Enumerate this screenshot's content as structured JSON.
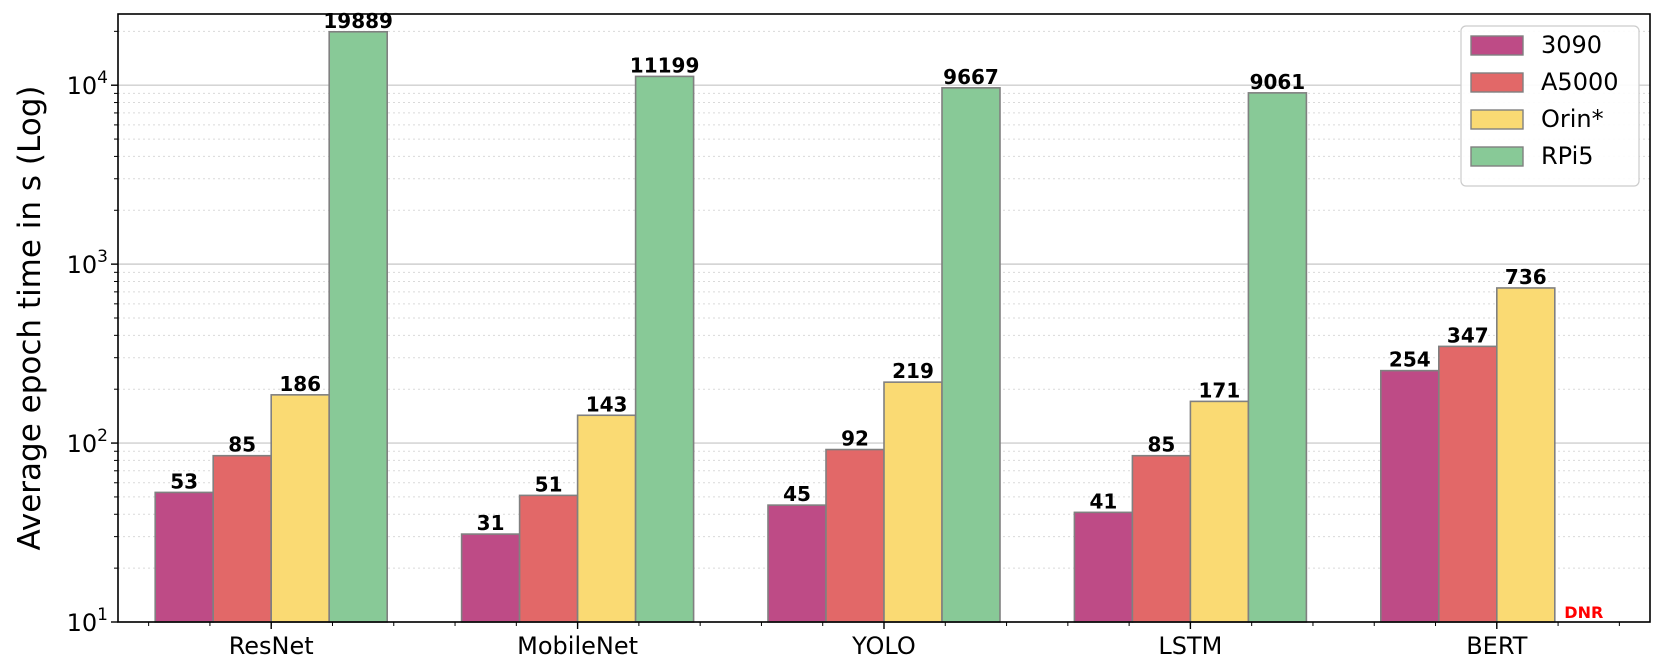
{
  "chart_data": {
    "type": "bar",
    "ylabel": "Average epoch time in s (Log)",
    "xlabel": "",
    "yscale": "log",
    "ylim": [
      10,
      25000
    ],
    "yticks": [
      {
        "value": 10,
        "base": "10",
        "exp": "1"
      },
      {
        "value": 100,
        "base": "10",
        "exp": "2"
      },
      {
        "value": 1000,
        "base": "10",
        "exp": "3"
      },
      {
        "value": 10000,
        "base": "10",
        "exp": "4"
      }
    ],
    "categories": [
      "ResNet",
      "MobileNet",
      "YOLO",
      "LSTM",
      "BERT"
    ],
    "series": [
      {
        "name": "3090",
        "color": "#be4b86",
        "values": [
          53,
          31,
          45,
          41,
          254
        ],
        "labels": [
          "53",
          "31",
          "45",
          "41",
          "254"
        ]
      },
      {
        "name": "A5000",
        "color": "#e26868",
        "values": [
          85,
          51,
          92,
          85,
          347
        ],
        "labels": [
          "85",
          "51",
          "92",
          "85",
          "347"
        ]
      },
      {
        "name": "Orin*",
        "color": "#fada73",
        "values": [
          186,
          143,
          219,
          171,
          736
        ],
        "labels": [
          "186",
          "143",
          "219",
          "171",
          "736"
        ]
      },
      {
        "name": "RPi5",
        "color": "#88c997",
        "values": [
          19889,
          11199,
          9667,
          9061,
          null
        ],
        "labels": [
          "19889",
          "11199",
          "9667",
          "9061",
          null
        ]
      }
    ],
    "annotations": [
      {
        "series": "RPi5",
        "category": "BERT",
        "text": "DNR",
        "color": "#ff0000"
      }
    ],
    "grid": true,
    "legend_position": "top-right"
  }
}
